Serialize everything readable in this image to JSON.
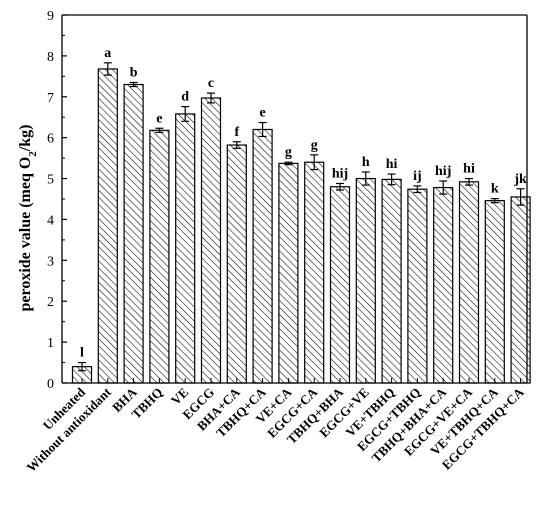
{
  "chart_data": {
    "type": "bar",
    "title": "",
    "xlabel": "",
    "ylabel": "peroxide value (meq O",
    "ylabel_subscript": "2",
    "ylabel_suffix": "/kg)",
    "ylim": [
      0,
      9
    ],
    "yticks": [
      0,
      1,
      2,
      3,
      4,
      5,
      6,
      7,
      8,
      9
    ],
    "grid": false,
    "bar_pattern": "diagonal-hatch",
    "categories": [
      "Unheated",
      "Without antioxidant",
      "BHA",
      "TBHQ",
      "VE",
      "EGCG",
      "BHA+CA",
      "TBHQ+CA",
      "VE+CA",
      "EGCG+CA",
      "TBHQ+BHA",
      "EGCG+VE",
      "VE+TBHQ",
      "EGCG+TBHQ",
      "TBHQ+BHA+CA",
      "EGCG+VE+CA",
      "VE+TBHQ+CA",
      "EGCG+TBHQ+CA"
    ],
    "values": [
      0.4,
      7.68,
      7.3,
      6.18,
      6.58,
      6.97,
      5.82,
      6.2,
      5.37,
      5.4,
      4.8,
      5.0,
      4.98,
      4.74,
      4.78,
      4.92,
      4.46,
      4.55
    ],
    "errors": [
      0.1,
      0.15,
      0.05,
      0.05,
      0.18,
      0.12,
      0.08,
      0.17,
      0.03,
      0.18,
      0.08,
      0.16,
      0.13,
      0.08,
      0.16,
      0.08,
      0.05,
      0.2
    ],
    "significance_letters": [
      "l",
      "a",
      "b",
      "e",
      "d",
      "c",
      "f",
      "e",
      "g",
      "g",
      "hij",
      "h",
      "hi",
      "ij",
      "hij",
      "hi",
      "k",
      "jk"
    ]
  }
}
